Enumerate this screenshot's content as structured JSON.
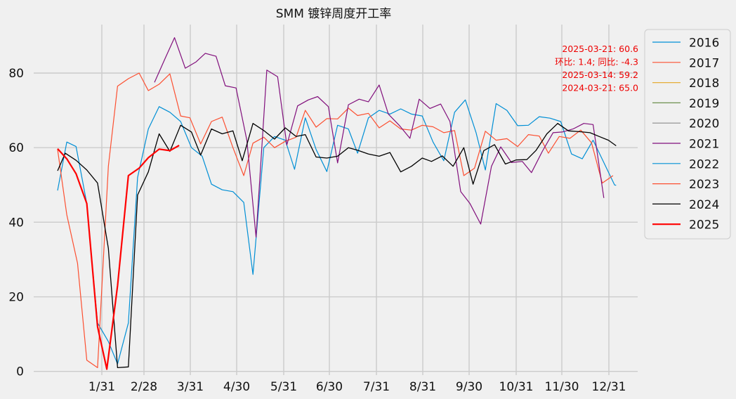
{
  "chart_data": {
    "type": "line",
    "title": "SMM 镀锌周度开工率",
    "xlabel": "",
    "ylabel": "",
    "x_ticks": [
      "1/31",
      "2/28",
      "3/31",
      "4/30",
      "5/31",
      "6/30",
      "7/31",
      "8/31",
      "9/30",
      "10/31",
      "11/30",
      "12/31"
    ],
    "y_ticks": [
      "0",
      "20",
      "40",
      "60",
      "80"
    ],
    "ylim": [
      -1,
      93
    ],
    "grid": true,
    "legend_position": "outside-right",
    "annotation": [
      "2025-03-21: 60.6",
      "环比: 1.4; 同比: -4.3",
      "2025-03-14: 59.2",
      "2024-03-21: 65.0"
    ],
    "series": [
      {
        "name": "2016",
        "color": "#008fd5",
        "width": 1.2,
        "values": [
          [
            1.7,
            48.5
          ],
          [
            2.3,
            61.5
          ],
          [
            2.9,
            60.3
          ],
          [
            3.6,
            45
          ],
          [
            4.3,
            13
          ],
          [
            5.0,
            8
          ],
          [
            5.6,
            2
          ],
          [
            6.3,
            13
          ],
          [
            6.9,
            52
          ],
          [
            7.6,
            65
          ],
          [
            8.3,
            71
          ],
          [
            9.0,
            69.5
          ],
          [
            9.7,
            67
          ],
          [
            10.4,
            60
          ],
          [
            11.1,
            57.7
          ],
          [
            11.7,
            50.2
          ],
          [
            12.4,
            48.7
          ],
          [
            13.1,
            48.2
          ],
          [
            13.8,
            45.3
          ],
          [
            14.4,
            26
          ],
          [
            15.1,
            60
          ],
          [
            15.8,
            63
          ],
          [
            16.5,
            62
          ],
          [
            17.1,
            54.2
          ],
          [
            17.8,
            68
          ],
          [
            18.5,
            59.5
          ],
          [
            19.2,
            53.6
          ],
          [
            19.9,
            66
          ],
          [
            20.6,
            65
          ],
          [
            21.2,
            58.5
          ],
          [
            21.9,
            68
          ],
          [
            22.6,
            70
          ],
          [
            23.3,
            69
          ],
          [
            24.0,
            70.4
          ],
          [
            24.7,
            69
          ],
          [
            25.4,
            68.5
          ],
          [
            26.1,
            61.5
          ],
          [
            26.8,
            56.5
          ],
          [
            27.5,
            69.5
          ],
          [
            28.2,
            72.8
          ],
          [
            28.9,
            64
          ],
          [
            29.5,
            54
          ],
          [
            30.2,
            71.8
          ],
          [
            30.9,
            70
          ],
          [
            31.6,
            65.9
          ],
          [
            32.3,
            66
          ],
          [
            33.0,
            68.3
          ],
          [
            33.7,
            67.9
          ],
          [
            34.4,
            67
          ],
          [
            35.1,
            58.3
          ],
          [
            35.8,
            57
          ],
          [
            36.5,
            62
          ],
          [
            37.2,
            56
          ],
          [
            37.9,
            50
          ],
          [
            38.0,
            49.9
          ]
        ]
      },
      {
        "name": "2017",
        "color": "#fc4f30",
        "width": 1.2,
        "values": [
          [
            1.7,
            59.5
          ],
          [
            2.3,
            42
          ],
          [
            3.0,
            29
          ],
          [
            3.6,
            3
          ],
          [
            4.3,
            1
          ],
          [
            5.0,
            55
          ],
          [
            5.6,
            76.5
          ],
          [
            6.3,
            78.5
          ],
          [
            7.0,
            80
          ],
          [
            7.6,
            75.3
          ],
          [
            8.3,
            77
          ],
          [
            9.0,
            79.8
          ],
          [
            9.7,
            68.5
          ],
          [
            10.3,
            68
          ],
          [
            11.0,
            61
          ],
          [
            11.7,
            67
          ],
          [
            12.4,
            68.2
          ],
          [
            13.1,
            60
          ],
          [
            13.8,
            52.5
          ],
          [
            14.4,
            61.2
          ],
          [
            15.1,
            62.8
          ],
          [
            15.8,
            60
          ],
          [
            16.5,
            61.7
          ],
          [
            17.2,
            62.8
          ],
          [
            17.8,
            70
          ],
          [
            18.5,
            65.5
          ],
          [
            19.2,
            67.8
          ],
          [
            19.9,
            67.7
          ],
          [
            20.6,
            70.6
          ],
          [
            21.2,
            68.6
          ],
          [
            21.9,
            69.2
          ],
          [
            22.6,
            65.3
          ],
          [
            23.3,
            67.2
          ],
          [
            24.0,
            65
          ],
          [
            24.7,
            64.7
          ],
          [
            25.4,
            66
          ],
          [
            26.1,
            65.6
          ],
          [
            26.8,
            64
          ],
          [
            27.5,
            64.6
          ],
          [
            28.1,
            52.5
          ],
          [
            28.8,
            54.5
          ],
          [
            29.5,
            64.4
          ],
          [
            30.2,
            62
          ],
          [
            30.9,
            62.4
          ],
          [
            31.6,
            60.3
          ],
          [
            32.3,
            63.5
          ],
          [
            33.0,
            63.1
          ],
          [
            33.6,
            58.5
          ],
          [
            34.3,
            63
          ],
          [
            35.0,
            62.5
          ],
          [
            35.7,
            64.7
          ],
          [
            36.4,
            61.3
          ],
          [
            37.1,
            50.5
          ],
          [
            37.8,
            52.5
          ]
        ]
      },
      {
        "name": "2018",
        "color": "#e5ae38",
        "width": 1.2,
        "values": []
      },
      {
        "name": "2019",
        "color": "#6d904f",
        "width": 1.2,
        "values": []
      },
      {
        "name": "2020",
        "color": "#8b8b8b",
        "width": 1.2,
        "values": []
      },
      {
        "name": "2021",
        "color": "#810f7c",
        "width": 1.2,
        "values": [
          [
            8.0,
            77.5
          ],
          [
            8.7,
            84
          ],
          [
            9.3,
            89.5
          ],
          [
            10.0,
            81.3
          ],
          [
            10.7,
            83
          ],
          [
            11.3,
            85.3
          ],
          [
            12.0,
            84.5
          ],
          [
            12.6,
            76.6
          ],
          [
            13.3,
            76
          ],
          [
            14.0,
            62
          ],
          [
            14.6,
            36
          ],
          [
            15.3,
            80.8
          ],
          [
            16.0,
            79
          ],
          [
            16.6,
            60.7
          ],
          [
            17.3,
            71.2
          ],
          [
            18.0,
            72.8
          ],
          [
            18.6,
            73.7
          ],
          [
            19.3,
            71
          ],
          [
            19.9,
            55.9
          ],
          [
            20.6,
            71.5
          ],
          [
            21.3,
            73
          ],
          [
            21.9,
            72.3
          ],
          [
            22.6,
            76.8
          ],
          [
            23.2,
            69
          ],
          [
            23.9,
            66
          ],
          [
            24.6,
            62.5
          ],
          [
            25.2,
            73
          ],
          [
            25.9,
            70.5
          ],
          [
            26.6,
            71.7
          ],
          [
            27.2,
            67
          ],
          [
            27.9,
            48.2
          ],
          [
            28.5,
            45
          ],
          [
            29.2,
            39.5
          ],
          [
            29.9,
            55
          ],
          [
            30.5,
            60.2
          ],
          [
            31.2,
            56
          ],
          [
            31.9,
            56.3
          ],
          [
            32.5,
            53.3
          ],
          [
            33.2,
            59
          ],
          [
            33.9,
            64
          ],
          [
            34.5,
            64.2
          ],
          [
            35.2,
            65
          ],
          [
            35.9,
            66.5
          ],
          [
            36.5,
            66.2
          ],
          [
            37.2,
            46.5
          ]
        ]
      },
      {
        "name": "2022",
        "color": "#008fd5",
        "width": 1.2,
        "values": []
      },
      {
        "name": "2023",
        "color": "#fc4f30",
        "width": 1.2,
        "values": []
      },
      {
        "name": "2024",
        "color": "#000000",
        "width": 1.3,
        "values": [
          [
            1.7,
            53.8
          ],
          [
            2.2,
            58.5
          ],
          [
            2.9,
            56.6
          ],
          [
            3.6,
            54
          ],
          [
            4.3,
            50.5
          ],
          [
            5.0,
            33
          ],
          [
            5.6,
            1
          ],
          [
            6.3,
            1.2
          ],
          [
            6.9,
            47.3
          ],
          [
            7.6,
            53.5
          ],
          [
            8.3,
            63.7
          ],
          [
            9.0,
            59
          ],
          [
            9.7,
            66
          ],
          [
            10.4,
            64.2
          ],
          [
            11.0,
            58
          ],
          [
            11.7,
            65
          ],
          [
            12.4,
            63.7
          ],
          [
            13.1,
            64.5
          ],
          [
            13.7,
            56.5
          ],
          [
            14.4,
            66.5
          ],
          [
            15.1,
            64.6
          ],
          [
            15.8,
            62.3
          ],
          [
            16.5,
            65.3
          ],
          [
            17.2,
            63
          ],
          [
            17.8,
            63.5
          ],
          [
            18.5,
            57.5
          ],
          [
            19.2,
            57.2
          ],
          [
            19.9,
            57.7
          ],
          [
            20.6,
            60
          ],
          [
            21.2,
            59.3
          ],
          [
            21.9,
            58.3
          ],
          [
            22.6,
            57.7
          ],
          [
            23.3,
            58.7
          ],
          [
            24.0,
            53.5
          ],
          [
            24.7,
            55
          ],
          [
            25.4,
            57.2
          ],
          [
            26.0,
            56.3
          ],
          [
            26.7,
            57.8
          ],
          [
            27.4,
            55
          ],
          [
            28.1,
            60
          ],
          [
            28.7,
            50.2
          ],
          [
            29.4,
            59.2
          ],
          [
            30.1,
            60.8
          ],
          [
            30.8,
            55.6
          ],
          [
            31.5,
            56.7
          ],
          [
            32.2,
            56.8
          ],
          [
            32.8,
            59.3
          ],
          [
            33.5,
            63.7
          ],
          [
            34.2,
            66.5
          ],
          [
            34.9,
            64.5
          ],
          [
            35.6,
            64.3
          ],
          [
            36.3,
            64
          ],
          [
            36.9,
            63
          ],
          [
            37.5,
            62
          ],
          [
            38.0,
            60.5
          ]
        ]
      },
      {
        "name": "2025",
        "color": "#ff0000",
        "width": 2.2,
        "values": [
          [
            1.7,
            59.7
          ],
          [
            2.3,
            57
          ],
          [
            2.9,
            53
          ],
          [
            3.6,
            45
          ],
          [
            4.3,
            12
          ],
          [
            4.9,
            0.6
          ],
          [
            5.6,
            23
          ],
          [
            6.3,
            52.5
          ],
          [
            7.0,
            54.5
          ],
          [
            7.6,
            57.3
          ],
          [
            8.3,
            59.6
          ],
          [
            9.0,
            59.2
          ],
          [
            9.6,
            60.6
          ]
        ]
      }
    ]
  }
}
